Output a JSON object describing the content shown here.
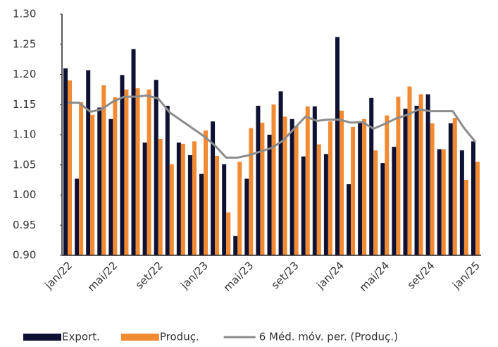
{
  "chart_data": {
    "type": "bar_line",
    "categories": [
      "jan/22",
      null,
      null,
      null,
      "mai/22",
      null,
      null,
      null,
      "set/22",
      null,
      null,
      null,
      "jan/23",
      null,
      null,
      null,
      "mai/23",
      null,
      null,
      null,
      "set/23",
      null,
      null,
      null,
      "jan/24",
      null,
      null,
      null,
      "mai/24",
      null,
      null,
      null,
      "set/24",
      null,
      null,
      null,
      "jan/25"
    ],
    "series": [
      {
        "name": "Export.",
        "type": "bar",
        "color": "#0e1133",
        "values": [
          1.21,
          1.027,
          1.207,
          1.145,
          1.126,
          1.199,
          1.242,
          1.087,
          1.191,
          1.148,
          1.087,
          1.066,
          1.035,
          1.122,
          1.051,
          0.932,
          1.027,
          1.148,
          1.1,
          1.172,
          1.126,
          1.064,
          1.147,
          1.068,
          1.262,
          1.018,
          1.12,
          1.161,
          1.053,
          1.08,
          1.143,
          1.148,
          1.167,
          1.076,
          1.119,
          1.074,
          1.089
        ]
      },
      {
        "name": "Produç.",
        "type": "bar",
        "color": "#f28a32",
        "values": [
          1.19,
          1.154,
          1.133,
          1.182,
          1.162,
          1.175,
          1.177,
          1.175,
          1.093,
          1.051,
          1.085,
          1.089,
          1.107,
          1.065,
          0.971,
          1.055,
          1.111,
          1.12,
          1.15,
          1.13,
          1.114,
          1.147,
          1.084,
          1.122,
          1.14,
          1.113,
          1.126,
          1.074,
          1.132,
          1.163,
          1.18,
          1.167,
          1.119,
          1.076,
          1.128,
          1.025,
          1.055
        ]
      },
      {
        "name": "6 Méd. móv. per. (Produç.)",
        "type": "line",
        "color": "#8c8c8c",
        "values": [
          1.153,
          1.153,
          1.138,
          1.142,
          1.155,
          1.163,
          1.163,
          1.165,
          1.16,
          1.137,
          1.124,
          1.111,
          1.098,
          1.082,
          1.062,
          1.062,
          1.066,
          1.072,
          1.078,
          1.09,
          1.11,
          1.13,
          1.123,
          1.125,
          1.125,
          1.12,
          1.121,
          1.11,
          1.118,
          1.127,
          1.133,
          1.142,
          1.139,
          1.139,
          1.139,
          1.111,
          1.088
        ]
      }
    ],
    "ylim": [
      0.9,
      1.3
    ],
    "yticks": [
      {
        "value": 0.9,
        "label": "0.90"
      },
      {
        "value": 0.95,
        "label": "0.95"
      },
      {
        "value": 1.0,
        "label": "1.00"
      },
      {
        "value": 1.05,
        "label": "1.05"
      },
      {
        "value": 1.1,
        "label": "1.10"
      },
      {
        "value": 1.15,
        "label": "1.15"
      },
      {
        "value": 1.2,
        "label": "1.20"
      },
      {
        "value": 1.25,
        "label": "1.25"
      },
      {
        "value": 1.3,
        "label": "1.30"
      }
    ],
    "legend": "bottom"
  }
}
